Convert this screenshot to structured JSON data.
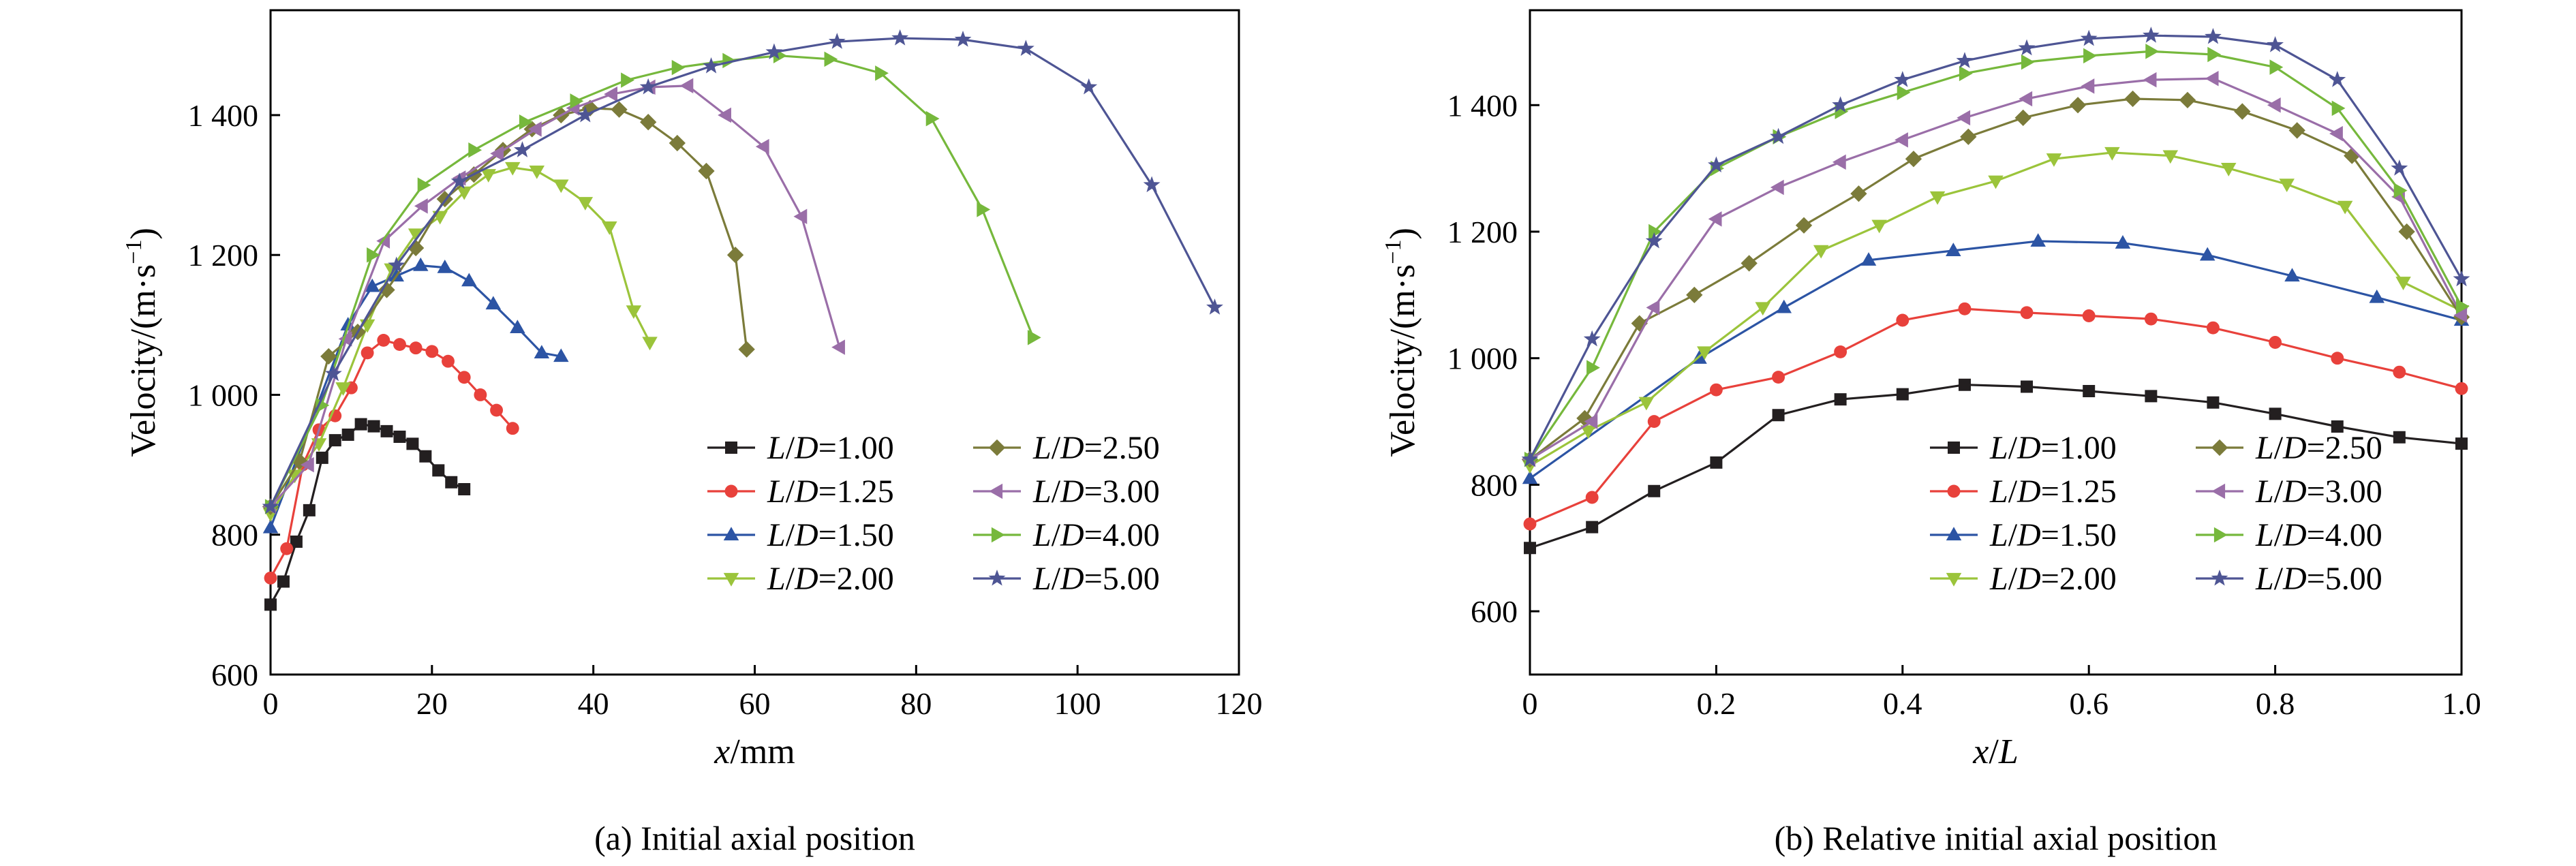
{
  "chart_data": [
    {
      "type": "line",
      "panel": "a",
      "caption": "(a) Initial axial position",
      "xlabel_italic": "x",
      "xlabel_rest": "/mm",
      "ylabel_main": "Velocity/(m·s",
      "ylabel_sup": "−1",
      "ylabel_end": ")",
      "xlim": [
        0,
        120
      ],
      "ylim": [
        600,
        1550
      ],
      "xticks": [
        0,
        20,
        40,
        60,
        80,
        100,
        120
      ],
      "xtick_labels": [
        "0",
        "20",
        "40",
        "60",
        "80",
        "100",
        "120"
      ],
      "yticks": [
        600,
        800,
        1000,
        1200,
        1400
      ],
      "ytick_labels": [
        "600",
        "800",
        "1 000",
        "1 200",
        "1 400"
      ],
      "legend_position": "bottom-right",
      "series": [
        {
          "name": "L/D=1.00",
          "color": "#231f20",
          "marker": "square",
          "x": [
            0,
            1.6,
            3.2,
            4.8,
            6.4,
            8,
            9.6,
            11.2,
            12.8,
            14.4,
            16,
            17.6,
            19.2,
            20.8,
            22.4,
            24
          ],
          "y": [
            700,
            733,
            790,
            835,
            910,
            935,
            943,
            958,
            955,
            948,
            940,
            930,
            912,
            892,
            875,
            865
          ]
        },
        {
          "name": "L/D=1.25",
          "color": "#e8413b",
          "marker": "circle",
          "x": [
            0,
            2,
            4,
            6,
            8,
            10,
            12,
            14,
            16,
            18,
            20,
            22,
            24,
            26,
            28,
            30
          ],
          "y": [
            738,
            780,
            900,
            950,
            970,
            1010,
            1060,
            1078,
            1072,
            1067,
            1062,
            1048,
            1025,
            1000,
            978,
            952
          ]
        },
        {
          "name": "L/D=1.50",
          "color": "#2c54a4",
          "marker": "triangle-up",
          "x": [
            0,
            9.6,
            12.6,
            15.6,
            18.6,
            21.6,
            24.6,
            27.6,
            30.6,
            33.6,
            36
          ],
          "y": [
            810,
            1100,
            1155,
            1170,
            1185,
            1182,
            1163,
            1130,
            1096,
            1060,
            1055
          ]
        },
        {
          "name": "L/D=2.00",
          "color": "#9bc43b",
          "marker": "triangle-down",
          "x": [
            0,
            3,
            6,
            9,
            12,
            15,
            18,
            21,
            24,
            27,
            30,
            33,
            36,
            39,
            42,
            45,
            47
          ],
          "y": [
            830,
            885,
            930,
            1010,
            1100,
            1180,
            1230,
            1255,
            1290,
            1315,
            1325,
            1320,
            1300,
            1275,
            1240,
            1120,
            1075
          ]
        },
        {
          "name": "L/D=2.50",
          "color": "#7b7b3a",
          "marker": "diamond",
          "x": [
            0,
            3.6,
            7.2,
            10.8,
            14.4,
            18,
            21.6,
            25.2,
            28.8,
            32.4,
            36,
            39.6,
            43.2,
            46.8,
            50.4,
            54,
            57.6,
            59
          ],
          "y": [
            840,
            905,
            1055,
            1090,
            1150,
            1210,
            1280,
            1315,
            1350,
            1380,
            1400,
            1410,
            1408,
            1390,
            1360,
            1320,
            1200,
            1065
          ]
        },
        {
          "name": "L/D=3.00",
          "color": "#9a6ea8",
          "marker": "triangle-left",
          "x": [
            0,
            4.7,
            9.4,
            14.1,
            18.8,
            23.5,
            28.2,
            32.9,
            37.6,
            42.3,
            47,
            51.7,
            56.4,
            61.1,
            65.8,
            70.5
          ],
          "y": [
            840,
            900,
            1080,
            1220,
            1270,
            1310,
            1345,
            1380,
            1410,
            1430,
            1440,
            1442,
            1400,
            1355,
            1255,
            1068
          ]
        },
        {
          "name": "L/D=4.00",
          "color": "#76b83c",
          "marker": "triangle-right",
          "x": [
            0,
            6.3,
            12.6,
            18.9,
            25.2,
            31.5,
            37.8,
            44.1,
            50.4,
            56.7,
            63,
            69.3,
            75.6,
            81.9,
            88.2,
            94.5
          ],
          "y": [
            840,
            985,
            1200,
            1300,
            1350,
            1390,
            1420,
            1450,
            1468,
            1478,
            1485,
            1480,
            1460,
            1395,
            1265,
            1082
          ]
        },
        {
          "name": "L/D=5.00",
          "color": "#4e5594",
          "marker": "star",
          "x": [
            0,
            7.8,
            15.6,
            23.4,
            31.2,
            39,
            46.8,
            54.6,
            62.4,
            70.2,
            78,
            85.8,
            93.6,
            101.4,
            109.2,
            117
          ],
          "y": [
            840,
            1030,
            1185,
            1305,
            1350,
            1400,
            1440,
            1470,
            1490,
            1505,
            1510,
            1508,
            1495,
            1440,
            1300,
            1125
          ]
        }
      ]
    },
    {
      "type": "line",
      "panel": "b",
      "caption": "(b) Relative initial axial position",
      "xlabel_italic": "x",
      "xlabel_rest": "/",
      "xlabel_italic2": "L",
      "ylabel_main": "Velocity/(m·s",
      "ylabel_sup": "−1",
      "ylabel_end": ")",
      "xlim": [
        0,
        1.0
      ],
      "ylim": [
        500,
        1550
      ],
      "xticks": [
        0,
        0.2,
        0.4,
        0.6,
        0.8,
        1.0
      ],
      "xtick_labels": [
        "0",
        "0.2",
        "0.4",
        "0.6",
        "0.8",
        "1.0"
      ],
      "yticks": [
        600,
        800,
        1000,
        1200,
        1400
      ],
      "ytick_labels": [
        "600",
        "800",
        "1 000",
        "1 200",
        "1 400"
      ],
      "legend_position": "bottom-right",
      "series": [
        {
          "name": "L/D=1.00",
          "color": "#231f20",
          "marker": "square",
          "x": [
            0,
            0.0667,
            0.1333,
            0.2,
            0.2667,
            0.3333,
            0.4,
            0.4667,
            0.5333,
            0.6,
            0.6667,
            0.7333,
            0.8,
            0.8667,
            0.9333,
            1.0
          ],
          "y": [
            700,
            733,
            790,
            835,
            910,
            935,
            943,
            958,
            955,
            948,
            940,
            930,
            912,
            892,
            875,
            865
          ]
        },
        {
          "name": "L/D=1.25",
          "color": "#e8413b",
          "marker": "circle",
          "x": [
            0,
            0.0667,
            0.1333,
            0.2,
            0.2667,
            0.3333,
            0.4,
            0.4667,
            0.5333,
            0.6,
            0.6667,
            0.7333,
            0.8,
            0.8667,
            0.9333,
            1.0
          ],
          "y": [
            738,
            780,
            900,
            950,
            970,
            1010,
            1060,
            1078,
            1072,
            1067,
            1062,
            1048,
            1025,
            1000,
            978,
            952
          ]
        },
        {
          "name": "L/D=1.50",
          "color": "#2c54a4",
          "marker": "triangle-up",
          "x": [
            0,
            0.1818,
            0.2727,
            0.3636,
            0.4545,
            0.5455,
            0.6364,
            0.7273,
            0.8182,
            0.9091,
            1.0
          ],
          "y": [
            810,
            1000,
            1080,
            1155,
            1170,
            1185,
            1182,
            1163,
            1130,
            1096,
            1060
          ]
        },
        {
          "name": "L/D=2.00",
          "color": "#9bc43b",
          "marker": "triangle-down",
          "x": [
            0,
            0.0625,
            0.125,
            0.1875,
            0.25,
            0.3125,
            0.375,
            0.4375,
            0.5,
            0.5625,
            0.625,
            0.6875,
            0.75,
            0.8125,
            0.875,
            0.9375,
            1.0
          ],
          "y": [
            830,
            885,
            930,
            1010,
            1080,
            1170,
            1210,
            1255,
            1280,
            1315,
            1325,
            1320,
            1300,
            1275,
            1240,
            1120,
            1075
          ]
        },
        {
          "name": "L/D=2.50",
          "color": "#7b7b3a",
          "marker": "diamond",
          "x": [
            0,
            0.0588,
            0.1176,
            0.1765,
            0.2353,
            0.2941,
            0.3529,
            0.4118,
            0.4706,
            0.5294,
            0.5882,
            0.6471,
            0.7059,
            0.7647,
            0.8235,
            0.8824,
            0.9412,
            1.0
          ],
          "y": [
            840,
            905,
            1055,
            1100,
            1150,
            1210,
            1260,
            1315,
            1350,
            1380,
            1400,
            1410,
            1408,
            1390,
            1360,
            1320,
            1200,
            1065
          ]
        },
        {
          "name": "L/D=3.00",
          "color": "#9a6ea8",
          "marker": "triangle-left",
          "x": [
            0,
            0.0667,
            0.1333,
            0.2,
            0.2667,
            0.3333,
            0.4,
            0.4667,
            0.5333,
            0.6,
            0.6667,
            0.7333,
            0.8,
            0.8667,
            0.9333,
            1.0
          ],
          "y": [
            840,
            900,
            1080,
            1220,
            1270,
            1310,
            1345,
            1380,
            1410,
            1430,
            1440,
            1442,
            1400,
            1355,
            1255,
            1068
          ]
        },
        {
          "name": "L/D=4.00",
          "color": "#76b83c",
          "marker": "triangle-right",
          "x": [
            0,
            0.0667,
            0.1333,
            0.2,
            0.2667,
            0.3333,
            0.4,
            0.4667,
            0.5333,
            0.6,
            0.6667,
            0.7333,
            0.8,
            0.8667,
            0.9333,
            1.0
          ],
          "y": [
            840,
            985,
            1200,
            1300,
            1350,
            1390,
            1420,
            1450,
            1468,
            1478,
            1485,
            1480,
            1460,
            1395,
            1265,
            1082
          ]
        },
        {
          "name": "L/D=5.00",
          "color": "#4e5594",
          "marker": "star",
          "x": [
            0,
            0.0667,
            0.1333,
            0.2,
            0.2667,
            0.3333,
            0.4,
            0.4667,
            0.5333,
            0.6,
            0.6667,
            0.7333,
            0.8,
            0.8667,
            0.9333,
            1.0
          ],
          "y": [
            840,
            1030,
            1185,
            1305,
            1350,
            1400,
            1440,
            1470,
            1490,
            1505,
            1510,
            1508,
            1495,
            1440,
            1300,
            1125
          ]
        }
      ]
    }
  ]
}
